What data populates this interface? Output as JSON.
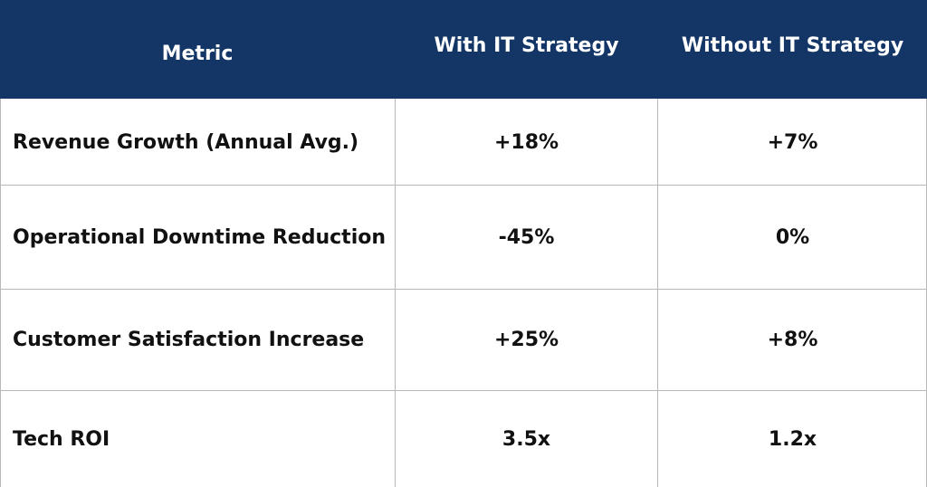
{
  "table": {
    "header_bg": "#133667",
    "header_text_color": "#ffffff",
    "columns": [
      "Metric",
      "With IT Strategy",
      "Without IT Strategy"
    ],
    "rows": [
      {
        "metric": "Revenue Growth (Annual Avg.)",
        "with": "+18%",
        "without": "+7%"
      },
      {
        "metric": "Operational Downtime Reduction",
        "with": "-45%",
        "without": "0%"
      },
      {
        "metric": "Customer Satisfaction Increase",
        "with": "+25%",
        "without": "+8%"
      },
      {
        "metric": "Tech ROI",
        "with": "3.5x",
        "without": "1.2x"
      }
    ]
  }
}
